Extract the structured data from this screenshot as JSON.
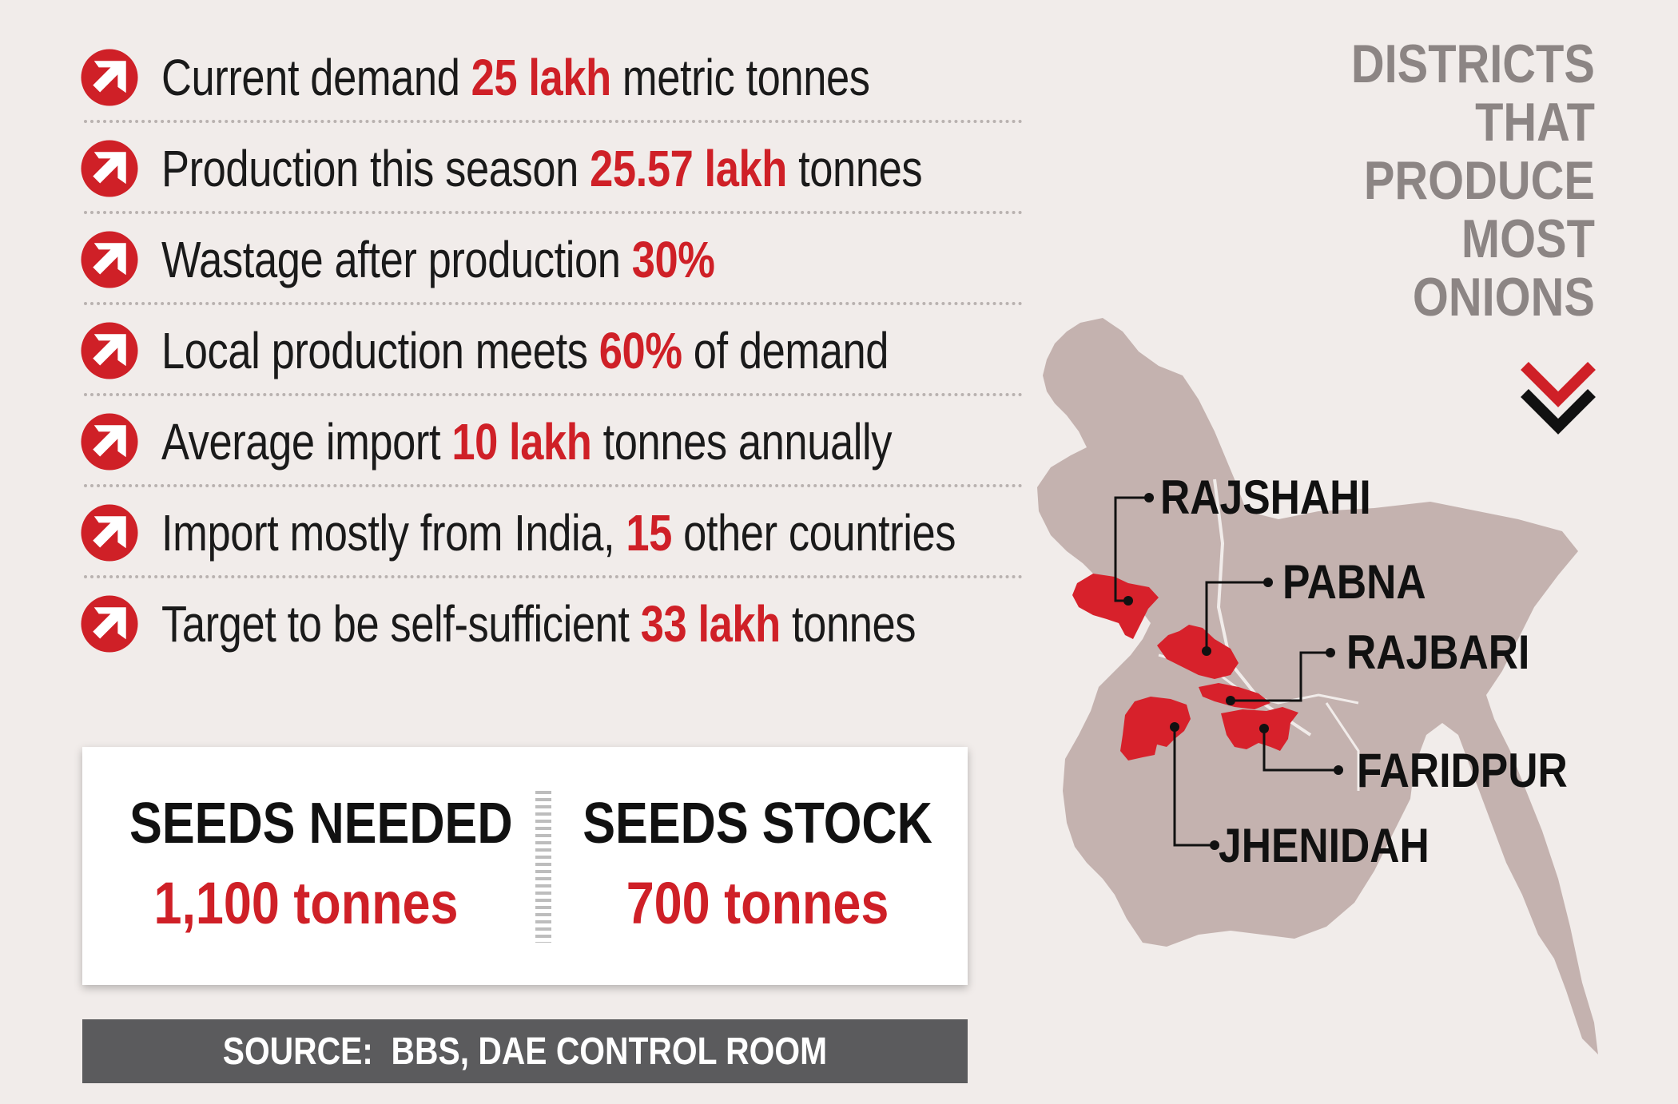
{
  "facts": [
    {
      "before": "Current demand ",
      "highlight": "25 lakh",
      "after": " metric tonnes"
    },
    {
      "before": "Production this season ",
      "highlight": "25.57 lakh",
      "after": " tonnes"
    },
    {
      "before": "Wastage after production ",
      "highlight": "30%",
      "after": ""
    },
    {
      "before": "Local production meets ",
      "highlight": "60%",
      "after": " of demand"
    },
    {
      "before": "Average import ",
      "highlight": "10 lakh",
      "after": " tonnes annually"
    },
    {
      "before": "Import mostly from India, ",
      "highlight": "15",
      "after": " other countries"
    },
    {
      "before": "Target to be self-sufficient ",
      "highlight": "33 lakh",
      "after": " tonnes"
    }
  ],
  "seeds": {
    "needed": {
      "label": "SEEDS NEEDED",
      "value": "1,100 tonnes"
    },
    "stock": {
      "label": "SEEDS STOCK",
      "value": "700 tonnes"
    }
  },
  "source": "SOURCE:  BBS, DAE CONTROL ROOM",
  "districts_title": [
    "DISTRICTS",
    "THAT",
    "PRODUCE",
    "MOST",
    "ONIONS"
  ],
  "districts": [
    "RAJSHAHI",
    "PABNA",
    "RAJBARI",
    "FARIDPUR",
    "JHENIDAH"
  ],
  "colors": {
    "accent": "#cf2027",
    "map_fill": "#c4b2af",
    "background": "#f1ecea",
    "title_gray": "#8c8584"
  },
  "icons": {
    "bullet": "arrow-up-right-circle-icon",
    "chevron": "double-chevron-down-icon"
  }
}
